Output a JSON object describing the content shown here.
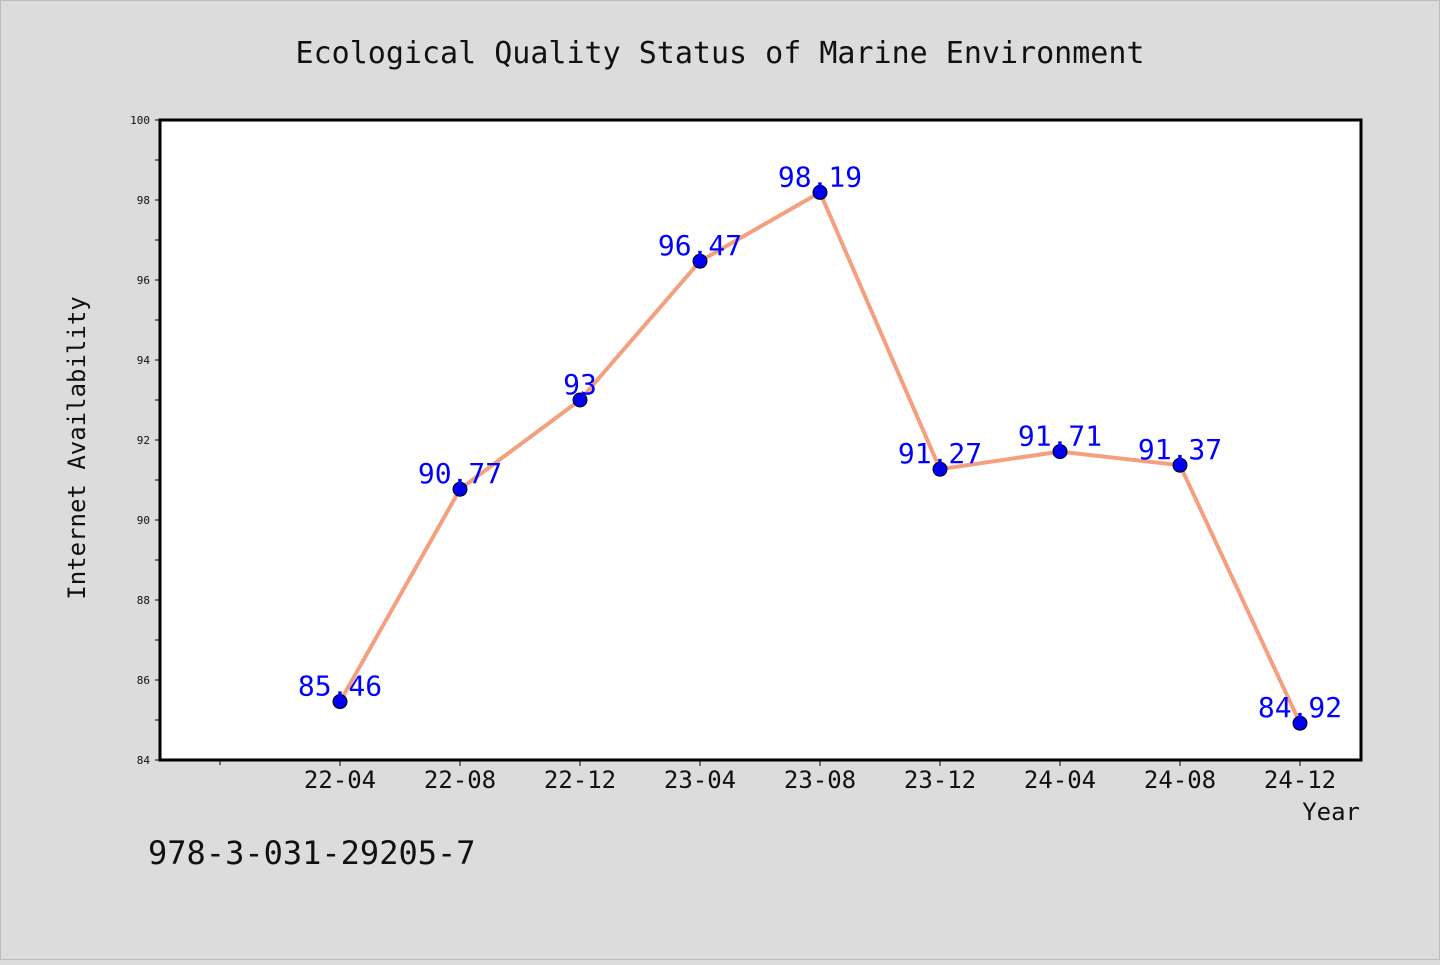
{
  "chart_data": {
    "type": "line",
    "title": "Ecological Quality Status of Marine Environment",
    "xlabel": "Year",
    "ylabel": "Internet Availability",
    "categories": [
      "22-04",
      "22-08",
      "22-12",
      "23-04",
      "23-08",
      "23-12",
      "24-04",
      "24-08",
      "24-12"
    ],
    "series": [
      {
        "values": [
          85.46,
          90.77,
          93,
          96.47,
          98.19,
          91.27,
          91.71,
          91.37,
          84.92
        ],
        "labels": [
          "85.46",
          "90.77",
          "93",
          "96.47",
          "98.19",
          "91.27",
          "91.71",
          "91.37",
          "84.92"
        ],
        "line_color": "#f4a07f",
        "marker_color": "#0000ee",
        "label_color": "#0000ff"
      }
    ],
    "ylim": [
      84,
      100
    ],
    "yticks": [
      84,
      86,
      88,
      90,
      92,
      94,
      96,
      98,
      100
    ],
    "grid": false,
    "legend": "none"
  },
  "footer": {
    "isbn": "978-3-031-29205-7"
  }
}
